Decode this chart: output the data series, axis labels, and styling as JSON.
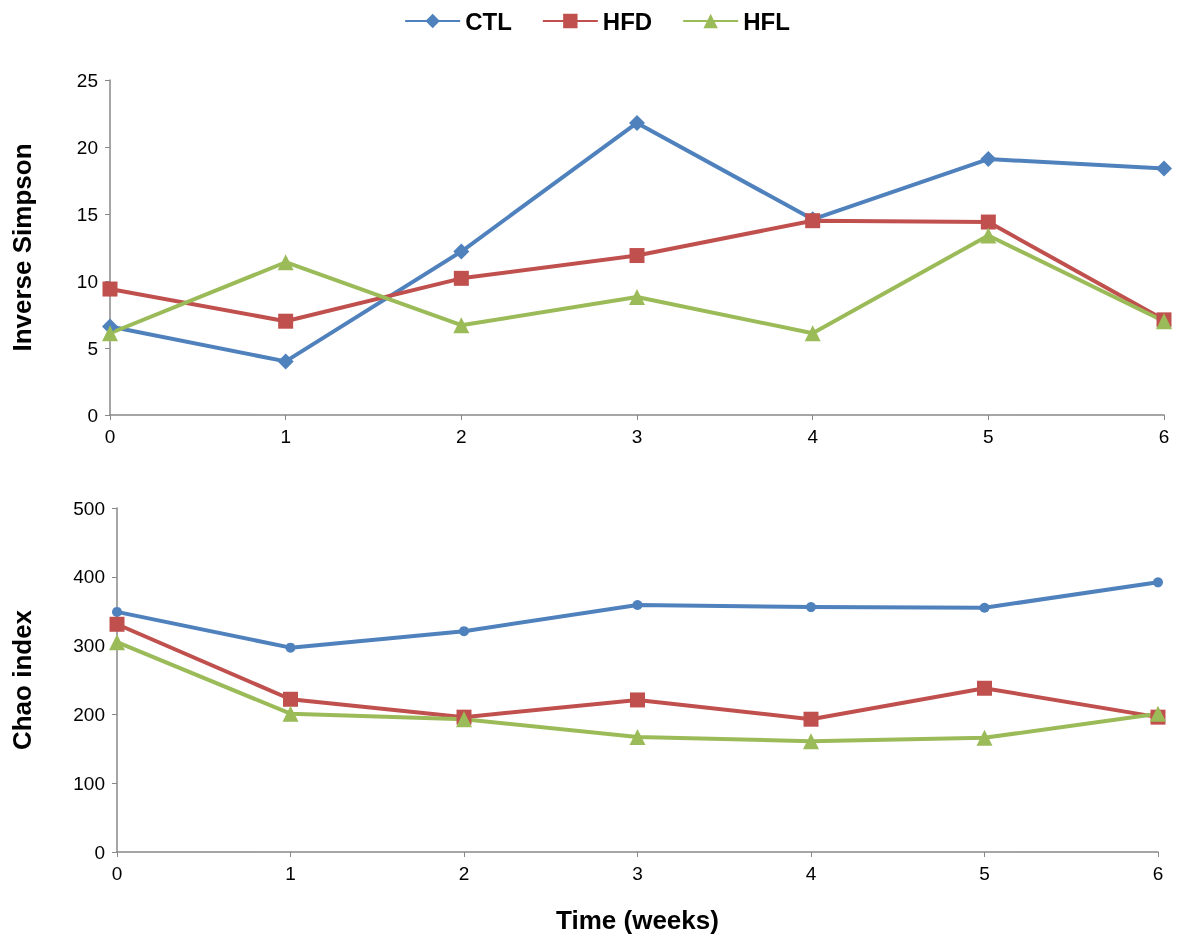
{
  "chart_data": [
    {
      "type": "line",
      "ylabel": "Inverse Simpson",
      "x": [
        0,
        1,
        2,
        3,
        4,
        5,
        6
      ],
      "xlim": [
        0,
        6
      ],
      "xticks": [
        0,
        1,
        2,
        3,
        4,
        5,
        6
      ],
      "ylim": [
        0,
        25
      ],
      "yticks": [
        0,
        5,
        10,
        15,
        20,
        25
      ],
      "grid": false,
      "legend": "top",
      "line_style": "solid",
      "series": [
        {
          "name": "CTL",
          "color": "#4f81bd",
          "marker": "diamond",
          "values": [
            6.6,
            4.0,
            12.2,
            21.8,
            14.6,
            19.1,
            18.4
          ]
        },
        {
          "name": "HFD",
          "color": "#c0504d",
          "marker": "square",
          "values": [
            9.4,
            7.0,
            10.2,
            11.9,
            14.5,
            14.4,
            7.1
          ]
        },
        {
          "name": "HFL",
          "color": "#9bbb59",
          "marker": "triangle",
          "values": [
            6.1,
            11.4,
            6.7,
            8.8,
            6.1,
            13.4,
            7.0
          ]
        }
      ]
    },
    {
      "type": "line",
      "ylabel": "Chao index",
      "xlabel": "Time (weeks)",
      "x": [
        0,
        1,
        2,
        3,
        4,
        5,
        6
      ],
      "xlim": [
        0,
        6
      ],
      "xticks": [
        0,
        1,
        2,
        3,
        4,
        5,
        6
      ],
      "ylim": [
        0,
        500
      ],
      "yticks": [
        0,
        100,
        200,
        300,
        400,
        500
      ],
      "grid": false,
      "legend": false,
      "line_style": "solid",
      "series": [
        {
          "color": "#4f81bd",
          "marker": "circle",
          "values": [
            349,
            297,
            321,
            359,
            356,
            355,
            392
          ]
        },
        {
          "color": "#c0504d",
          "marker": "square",
          "values": [
            331,
            222,
            196,
            221,
            193,
            238,
            196
          ]
        },
        {
          "color": "#9bbb59",
          "marker": "triangle",
          "values": [
            305,
            201,
            193,
            167,
            161,
            166,
            201
          ]
        }
      ]
    }
  ]
}
